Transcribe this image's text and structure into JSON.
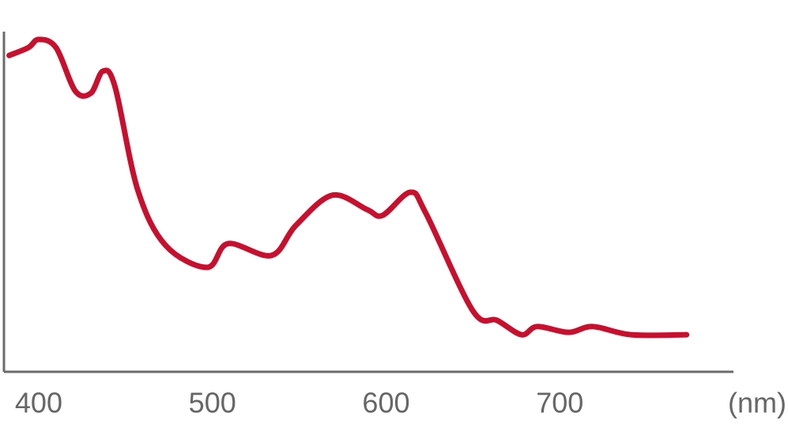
{
  "chart_data": {
    "type": "line",
    "x_label": "(nm)",
    "x": [
      383,
      394,
      400,
      410,
      421,
      430,
      437,
      444,
      457,
      473,
      497,
      509,
      534,
      548,
      569,
      589,
      598,
      614,
      623,
      650,
      664,
      678,
      687,
      705,
      719,
      741,
      773
    ],
    "series": [
      {
        "color": "#c8102e",
        "values": [
          93,
          95.3,
          97.7,
          95.3,
          82.6,
          81.9,
          88.4,
          83.7,
          53.5,
          37.2,
          30.7,
          37.7,
          34.2,
          43,
          51.9,
          47.7,
          46,
          52.8,
          46.5,
          17.9,
          15.1,
          10.9,
          13.3,
          11.6,
          13.3,
          10.9,
          10.9
        ]
      }
    ],
    "xlim": [
      380,
      800
    ],
    "xticks": [
      400,
      500,
      600,
      700
    ],
    "ylim": [
      0,
      100
    ]
  }
}
